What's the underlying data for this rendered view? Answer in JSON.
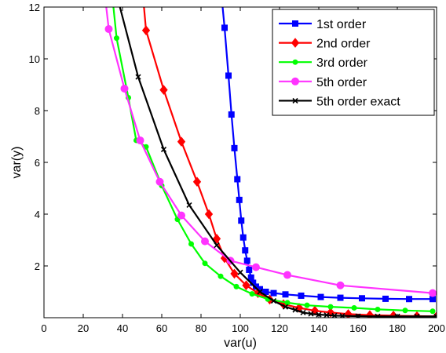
{
  "chart_data": {
    "type": "line",
    "xlabel": "var(u)",
    "ylabel": "var(y)",
    "xlim": [
      0,
      200
    ],
    "ylim": [
      0,
      12
    ],
    "x_ticks": [
      0,
      20,
      40,
      60,
      80,
      100,
      120,
      140,
      160,
      180,
      200
    ],
    "y_ticks": [
      2,
      4,
      6,
      8,
      10,
      12
    ],
    "grid": false,
    "legend_position": "top-right",
    "series": [
      {
        "name": "1st order",
        "color": "#0000ff",
        "marker": "square",
        "points": [
          [
            88,
            14.2
          ],
          [
            90,
            12.8
          ],
          [
            92,
            11.2
          ],
          [
            94,
            9.35
          ],
          [
            95.5,
            7.85
          ],
          [
            97,
            6.55
          ],
          [
            98.5,
            5.35
          ],
          [
            99.5,
            4.55
          ],
          [
            100.5,
            3.75
          ],
          [
            101.5,
            3.1
          ],
          [
            102.5,
            2.6
          ],
          [
            103.5,
            2.2
          ],
          [
            104.5,
            1.85
          ],
          [
            105.5,
            1.55
          ],
          [
            106.5,
            1.35
          ],
          [
            108,
            1.2
          ],
          [
            110,
            1.1
          ],
          [
            113,
            1.0
          ],
          [
            117,
            0.95
          ],
          [
            123,
            0.9
          ],
          [
            131,
            0.85
          ],
          [
            141,
            0.8
          ],
          [
            151,
            0.77
          ],
          [
            162,
            0.75
          ],
          [
            174,
            0.73
          ],
          [
            186,
            0.72
          ],
          [
            198,
            0.72
          ]
        ]
      },
      {
        "name": "2nd order",
        "color": "#ff0000",
        "marker": "diamond",
        "points": [
          [
            48,
            14.5
          ],
          [
            52,
            11.1
          ],
          [
            61,
            8.8
          ],
          [
            70,
            6.8
          ],
          [
            78,
            5.25
          ],
          [
            84,
            4.0
          ],
          [
            88,
            3.05
          ],
          [
            92,
            2.3
          ],
          [
            97,
            1.7
          ],
          [
            103,
            1.25
          ],
          [
            109,
            0.95
          ],
          [
            115,
            0.7
          ],
          [
            122,
            0.52
          ],
          [
            130,
            0.38
          ],
          [
            138,
            0.27
          ],
          [
            146,
            0.2
          ],
          [
            155,
            0.14
          ],
          [
            166,
            0.1
          ],
          [
            178,
            0.08
          ],
          [
            190,
            0.06
          ],
          [
            200,
            0.05
          ]
        ]
      },
      {
        "name": "3rd order",
        "color": "#00ff00",
        "marker": "circle-small",
        "points": [
          [
            32,
            14.5
          ],
          [
            37,
            10.8
          ],
          [
            43,
            8.5
          ],
          [
            47,
            6.85
          ],
          [
            52,
            6.6
          ],
          [
            60,
            5.1
          ],
          [
            68,
            3.8
          ],
          [
            75,
            2.85
          ],
          [
            82,
            2.1
          ],
          [
            90,
            1.6
          ],
          [
            98,
            1.2
          ],
          [
            106,
            0.92
          ],
          [
            114,
            0.72
          ],
          [
            124,
            0.58
          ],
          [
            134,
            0.48
          ],
          [
            146,
            0.42
          ],
          [
            158,
            0.38
          ],
          [
            170,
            0.32
          ],
          [
            184,
            0.28
          ],
          [
            198,
            0.25
          ]
        ]
      },
      {
        "name": "5th order",
        "color": "#ff33ff",
        "marker": "circle",
        "points": [
          [
            28,
            14.5
          ],
          [
            33,
            11.15
          ],
          [
            41,
            8.85
          ],
          [
            49,
            6.85
          ],
          [
            59,
            5.25
          ],
          [
            70,
            3.95
          ],
          [
            82,
            2.95
          ],
          [
            95,
            2.2
          ],
          [
            108,
            1.95
          ],
          [
            124,
            1.65
          ],
          [
            151,
            1.25
          ],
          [
            198,
            0.95
          ]
        ]
      },
      {
        "name": "5th order exact",
        "color": "#000000",
        "marker": "x",
        "points": [
          [
            38,
            12.2
          ],
          [
            48,
            9.3
          ],
          [
            61,
            6.5
          ],
          [
            74,
            4.35
          ],
          [
            88,
            2.8
          ],
          [
            100,
            1.75
          ],
          [
            110,
            1.0
          ],
          [
            117,
            0.65
          ],
          [
            123,
            0.42
          ],
          [
            128,
            0.3
          ],
          [
            132,
            0.2
          ],
          [
            136,
            0.15
          ],
          [
            140,
            0.12
          ],
          [
            144,
            0.1
          ],
          [
            148,
            0.08
          ],
          [
            152,
            0.07
          ],
          [
            160,
            0.06
          ],
          [
            170,
            0.05
          ],
          [
            180,
            0.05
          ],
          [
            190,
            0.05
          ],
          [
            200,
            0.05
          ]
        ]
      }
    ]
  }
}
